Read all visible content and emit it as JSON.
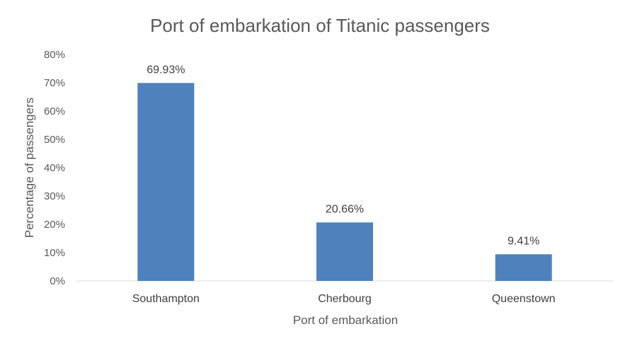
{
  "chart_data": {
    "type": "bar",
    "title": "Port of embarkation of Titanic passengers",
    "xlabel": "Port of embarkation",
    "ylabel": "Percentage of passengers",
    "categories": [
      "Southampton",
      "Cherbourg",
      "Queenstown"
    ],
    "values": [
      69.93,
      20.66,
      9.41
    ],
    "data_labels": [
      "69.93%",
      "20.66%",
      "9.41%"
    ],
    "ylim": [
      0,
      80
    ],
    "yticks": [
      "0%",
      "10%",
      "20%",
      "30%",
      "40%",
      "50%",
      "60%",
      "70%",
      "80%"
    ],
    "grid": false,
    "legend": "none",
    "bar_color": "#4f81bd"
  }
}
